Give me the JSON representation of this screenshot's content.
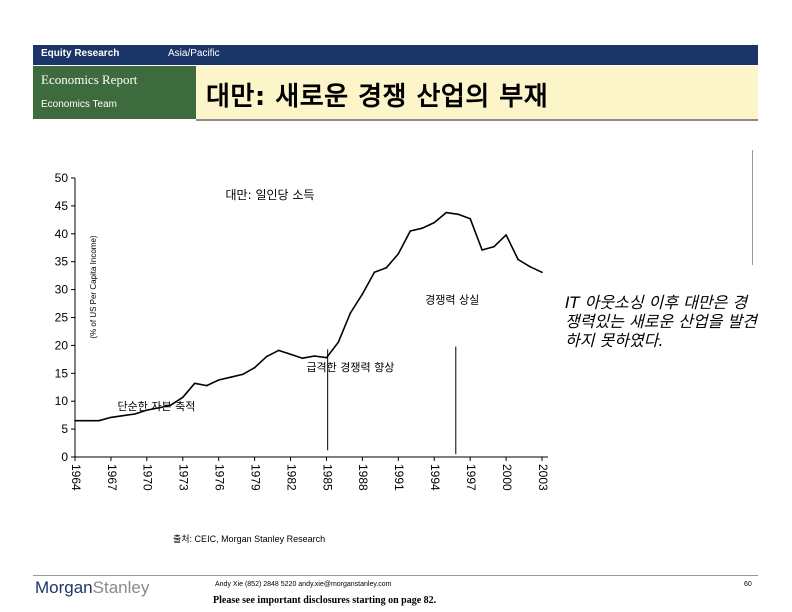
{
  "header": {
    "division": "Equity Research",
    "region": "Asia/Pacific",
    "report_type": "Economics Report",
    "team": "Economics Team",
    "title": "대만: 새로운 경쟁 산업의 부재"
  },
  "chart_data": {
    "type": "line",
    "title": "대만: 일인당 소득",
    "ylabel": "(% of US Per Capita Income)",
    "xlabel": "",
    "ylim": [
      0,
      50
    ],
    "yticks": [
      0,
      5,
      10,
      15,
      20,
      25,
      30,
      35,
      40,
      45,
      50
    ],
    "xlim": [
      1964,
      2003.5
    ],
    "xticks": [
      "1964",
      "1967",
      "1970",
      "1973",
      "1976",
      "1979",
      "1982",
      "1985",
      "1988",
      "1991",
      "1994",
      "1997",
      "2000",
      "2003"
    ],
    "grid": false,
    "series": [
      {
        "name": "",
        "color": "#000000",
        "x": [
          1964,
          1965,
          1966,
          1967,
          1968,
          1969,
          1970,
          1971,
          1972,
          1973,
          1974,
          1975,
          1976,
          1977,
          1978,
          1979,
          1980,
          1981,
          1982,
          1983,
          1984,
          1985,
          1986,
          1987,
          1988,
          1989,
          1990,
          1991,
          1992,
          1993,
          1994,
          1995,
          1996,
          1997,
          1998,
          1999,
          2000,
          2001,
          2002,
          2003
        ],
        "values": [
          6.5,
          6.5,
          6.5,
          7.1,
          7.4,
          7.7,
          8.4,
          8.8,
          9.3,
          10.7,
          13.2,
          12.8,
          13.8,
          14.3,
          14.8,
          16.0,
          18.0,
          19.1,
          18.4,
          17.7,
          18.1,
          17.8,
          20.6,
          25.8,
          29.2,
          33.1,
          33.9,
          36.4,
          40.5,
          41.0,
          42.0,
          43.8,
          43.5,
          42.7,
          37.1,
          37.7,
          39.8,
          35.4,
          34.1,
          33.1
        ]
      }
    ],
    "annotations": [
      {
        "text": "경쟁력 상실",
        "x": 1995.5,
        "y": 27.5
      },
      {
        "text": "급격한 경쟁력 향상",
        "x": 1987.0,
        "y": 15.4
      },
      {
        "text": "단순한 자본 축적",
        "x": 1970.8,
        "y": 8.4
      }
    ],
    "marker_lines": [
      {
        "x": 1985.1,
        "y_top": 19.3,
        "y_bottom": 1.2
      },
      {
        "x": 1995.8,
        "y_top": 19.8,
        "y_bottom": 0.5
      }
    ]
  },
  "sidenote": "IT 아웃소싱 이후 대만은 경쟁력있는 새로운 산업을 발견하지 못하였다.",
  "source": "출처: CEIC, Morgan Stanley Research",
  "footer": {
    "logo_part1": "Morgan",
    "logo_part2": "Stanley",
    "contact": "Andy Xie (852) 2848 5220  andy.xie@morganstanley.com",
    "disclosure": "Please see important disclosures starting on page 82.",
    "page": "60"
  }
}
